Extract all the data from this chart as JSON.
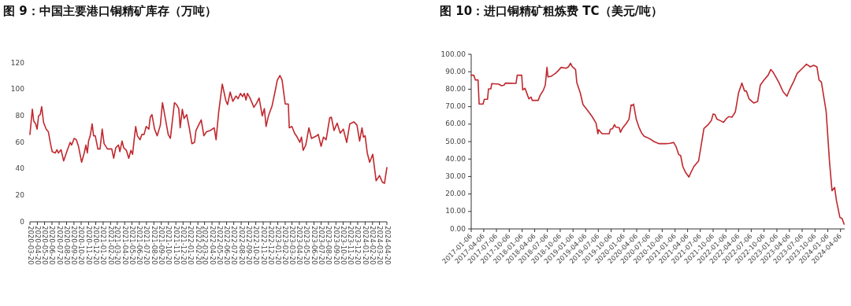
{
  "chart_data": [
    {
      "type": "line",
      "title": "图 9：中国主要港口铜精矿库存（万吨）",
      "color": "#c0282e",
      "xlim": [
        "2020-03-20",
        "2024-04-20"
      ],
      "ylim": [
        0,
        120
      ],
      "yticks": [
        0,
        20,
        40,
        60,
        80,
        100,
        120
      ],
      "xticks": [
        "2020-03-20",
        "2020-04-20",
        "2020-05-20",
        "2020-06-20",
        "2020-07-20",
        "2020-08-20",
        "2020-09-20",
        "2020-10-20",
        "2020-11-20",
        "2020-12-20",
        "2021-01-20",
        "2021-02-20",
        "2021-03-20",
        "2021-04-20",
        "2021-05-20",
        "2021-06-20",
        "2021-07-20",
        "2021-08-20",
        "2021-09-20",
        "2021-10-20",
        "2021-11-20",
        "2021-12-20",
        "2022-01-20",
        "2022-02-20",
        "2022-03-20",
        "2022-04-20",
        "2022-05-20",
        "2022-06-20",
        "2022-07-20",
        "2022-08-20",
        "2022-09-20",
        "2022-10-20",
        "2022-11-20",
        "2022-12-20",
        "2023-01-20",
        "2023-02-20",
        "2023-03-20",
        "2023-04-20",
        "2023-05-20",
        "2023-06-20",
        "2023-07-20",
        "2023-08-20",
        "2023-09-20",
        "2023-10-20",
        "2023-11-20",
        "2023-12-20",
        "2024-01-20",
        "2024-02-20",
        "2024-03-20",
        "2024-04-20"
      ],
      "x": [
        "2020-03-20",
        "2020-03-30",
        "2020-04-05",
        "2020-04-13",
        "2020-04-19",
        "2020-04-25",
        "2020-05-02",
        "2020-05-08",
        "2020-05-16",
        "2020-05-27",
        "2020-06-05",
        "2020-06-15",
        "2020-06-21",
        "2020-07-04",
        "2020-07-11",
        "2020-07-17",
        "2020-07-28",
        "2020-08-08",
        "2020-08-23",
        "2020-09-04",
        "2020-09-10",
        "2020-09-21",
        "2020-09-30",
        "2020-10-09",
        "2020-10-22",
        "2020-11-02",
        "2020-11-09",
        "2020-11-15",
        "2020-11-20",
        "2020-11-27",
        "2020-12-05",
        "2020-12-11",
        "2020-12-18",
        "2020-12-29",
        "2021-01-07",
        "2021-01-16",
        "2021-01-24",
        "2021-02-07",
        "2021-02-25",
        "2021-03-05",
        "2021-03-14",
        "2021-03-25",
        "2021-03-31",
        "2021-04-09",
        "2021-04-16",
        "2021-04-27",
        "2021-05-07",
        "2021-05-16",
        "2021-05-23",
        "2021-05-29",
        "2021-06-05",
        "2021-06-12",
        "2021-06-23",
        "2021-07-01",
        "2021-07-10",
        "2021-07-19",
        "2021-07-30",
        "2021-08-05",
        "2021-08-12",
        "2021-08-23",
        "2021-09-03",
        "2021-09-16",
        "2021-09-25",
        "2021-10-08",
        "2021-10-19",
        "2021-10-28",
        "2021-11-04",
        "2021-11-14",
        "2021-11-23",
        "2021-12-02",
        "2021-12-08",
        "2021-12-17",
        "2021-12-24",
        "2022-01-04",
        "2022-01-15",
        "2022-01-26",
        "2022-02-06",
        "2022-02-12",
        "2022-02-23",
        "2022-03-06",
        "2022-03-17",
        "2022-03-28",
        "2022-04-13",
        "2022-04-29",
        "2022-05-07",
        "2022-05-18",
        "2022-06-02",
        "2022-06-17",
        "2022-06-24",
        "2022-07-05",
        "2022-07-16",
        "2022-07-29",
        "2022-08-07",
        "2022-08-17",
        "2022-08-26",
        "2022-09-02",
        "2022-09-09",
        "2022-09-15",
        "2022-09-26",
        "2022-10-12",
        "2022-10-23",
        "2022-11-03",
        "2022-11-16",
        "2022-11-25",
        "2022-12-02",
        "2022-12-12",
        "2022-12-27",
        "2023-01-07",
        "2023-01-18",
        "2023-01-29",
        "2023-02-07",
        "2023-02-20",
        "2023-03-05",
        "2023-03-09",
        "2023-03-20",
        "2023-03-31",
        "2023-04-11",
        "2023-04-22",
        "2023-04-29",
        "2023-05-06",
        "2023-05-17",
        "2023-05-30",
        "2023-06-10",
        "2023-06-21",
        "2023-07-02",
        "2023-07-08",
        "2023-07-20",
        "2023-07-30",
        "2023-08-10",
        "2023-08-25",
        "2023-09-01",
        "2023-09-12",
        "2023-09-25",
        "2023-10-08",
        "2023-10-21",
        "2023-11-04",
        "2023-11-17",
        "2023-12-04",
        "2023-12-17",
        "2023-12-28",
        "2024-01-07",
        "2024-01-13",
        "2024-01-20",
        "2024-01-29",
        "2024-02-08",
        "2024-02-21",
        "2024-03-06",
        "2024-03-20",
        "2024-04-01",
        "2024-04-10",
        "2024-04-20"
      ],
      "values": [
        66,
        85,
        76,
        74,
        70,
        80,
        81,
        87,
        75,
        70,
        68,
        58,
        53,
        52,
        54.5,
        52,
        54.5,
        46,
        54,
        60,
        58,
        63,
        62,
        57,
        45,
        52,
        58,
        52,
        61,
        65,
        74,
        65,
        65,
        55,
        55,
        70,
        59,
        55,
        55,
        48,
        56,
        58,
        53,
        61,
        56,
        54,
        48,
        54,
        51,
        61,
        72,
        65,
        62,
        66,
        66,
        72,
        70,
        79,
        81,
        70,
        65,
        73,
        90,
        77,
        66,
        63,
        74,
        90,
        88.5,
        85.5,
        71,
        85,
        78,
        81,
        71,
        59,
        60,
        69,
        73,
        77,
        65,
        68,
        69,
        71,
        62,
        83,
        104,
        91.5,
        88.5,
        98,
        91,
        95,
        93,
        97,
        94.5,
        97,
        92,
        97,
        93.5,
        86.5,
        89.5,
        93.5,
        80,
        85.5,
        72,
        80,
        87.5,
        97,
        107,
        110.5,
        107,
        89,
        89,
        71,
        72,
        67,
        64,
        60,
        64,
        54,
        58,
        71,
        63,
        64,
        65,
        66,
        57,
        64,
        62,
        78.5,
        79,
        69,
        74.5,
        67,
        70,
        60,
        74,
        75.5,
        73,
        61,
        71,
        64,
        65,
        52,
        45,
        51,
        31,
        35,
        30,
        29,
        41
      ]
    },
    {
      "type": "line",
      "title": "图 10：进口铜精矿粗炼费 TC（美元/吨）",
      "color": "#c0282e",
      "xlim": [
        "2017-01-06",
        "2024-05-06"
      ],
      "ylim": [
        0,
        100
      ],
      "yticks": [
        {
          "value": 0,
          "label": "0.00"
        },
        {
          "value": 10,
          "label": "10.00"
        },
        {
          "value": 20,
          "label": "20.00"
        },
        {
          "value": 30,
          "label": "30.00"
        },
        {
          "value": 40,
          "label": "40.00"
        },
        {
          "value": 50,
          "label": "50.00"
        },
        {
          "value": 60,
          "label": "60.00"
        },
        {
          "value": 70,
          "label": "70.00"
        },
        {
          "value": 80,
          "label": "80.00"
        },
        {
          "value": 90,
          "label": "90.00"
        },
        {
          "value": 100,
          "label": "100.00"
        }
      ],
      "xticks": [
        "2017-01-06",
        "2017-04-06",
        "2017-07-06",
        "2017-10-06",
        "2018-01-06",
        "2018-04-06",
        "2018-07-06",
        "2018-10-06",
        "2019-01-06",
        "2019-04-06",
        "2019-07-06",
        "2019-10-06",
        "2020-01-06",
        "2020-04-06",
        "2020-07-06",
        "2020-10-06",
        "2021-01-06",
        "2021-04-06",
        "2021-07-06",
        "2021-10-06",
        "2022-01-06",
        "2022-04-06",
        "2022-07-06",
        "2022-10-06",
        "2023-01-06",
        "2023-04-06",
        "2023-07-06",
        "2023-10-06",
        "2024-01-06",
        "2024-04-06"
      ],
      "x": [
        "2017-01-06",
        "2017-01-25",
        "2017-02-05",
        "2017-02-24",
        "2017-03-04",
        "2017-04-01",
        "2017-04-10",
        "2017-05-03",
        "2017-05-10",
        "2017-05-27",
        "2017-06-02",
        "2017-07-23",
        "2017-08-11",
        "2017-08-29",
        "2017-09-08",
        "2017-11-23",
        "2017-12-02",
        "2018-01-03",
        "2018-01-10",
        "2018-01-27",
        "2018-02-15",
        "2018-02-24",
        "2018-03-12",
        "2018-03-19",
        "2018-05-01",
        "2018-05-14",
        "2018-06-08",
        "2018-06-21",
        "2018-07-03",
        "2018-07-10",
        "2018-08-03",
        "2018-08-13",
        "2018-09-01",
        "2018-09-20",
        "2018-10-13",
        "2018-11-16",
        "2018-12-04",
        "2018-12-19",
        "2019-01-01",
        "2019-01-24",
        "2019-02-02",
        "2019-02-27",
        "2019-03-18",
        "2019-04-25",
        "2019-05-23",
        "2019-06-20",
        "2019-07-03",
        "2019-07-09",
        "2019-08-02",
        "2019-09-22",
        "2019-10-01",
        "2019-10-16",
        "2019-10-30",
        "2019-11-08",
        "2019-12-03",
        "2019-12-12",
        "2019-12-25",
        "2020-01-23",
        "2020-02-11",
        "2020-02-26",
        "2020-03-04",
        "2020-03-15",
        "2020-04-03",
        "2020-04-22",
        "2020-05-11",
        "2020-05-30",
        "2020-06-22",
        "2020-07-11",
        "2020-08-08",
        "2020-09-14",
        "2020-10-31",
        "2020-11-29",
        "2020-12-27",
        "2021-01-14",
        "2021-02-02",
        "2021-02-15",
        "2021-03-03",
        "2021-03-22",
        "2021-04-15",
        "2021-04-28",
        "2021-05-21",
        "2021-06-24",
        "2021-07-09",
        "2021-08-01",
        "2021-08-29",
        "2021-09-23",
        "2021-10-06",
        "2021-10-19",
        "2021-11-03",
        "2021-11-26",
        "2021-12-20",
        "2022-01-07",
        "2022-01-26",
        "2022-02-19",
        "2022-03-14",
        "2022-04-06",
        "2022-04-30",
        "2022-05-19",
        "2022-06-01",
        "2022-06-20",
        "2022-07-24",
        "2022-08-21",
        "2022-09-09",
        "2022-10-03",
        "2022-11-04",
        "2022-11-23",
        "2022-12-12",
        "2023-01-19",
        "2023-02-20",
        "2023-03-19",
        "2023-04-05",
        "2023-05-07",
        "2023-05-31",
        "2023-07-08",
        "2023-08-06",
        "2023-09-03",
        "2023-09-27",
        "2023-10-20",
        "2023-11-04",
        "2023-11-21",
        "2023-12-25",
        "2024-01-18",
        "2024-02-05",
        "2024-02-24",
        "2024-03-08",
        "2024-04-02",
        "2024-04-17",
        "2024-05-02"
      ],
      "values": [
        88,
        88,
        85.3,
        85.3,
        71.5,
        71.5,
        74.2,
        74.2,
        80.2,
        80.2,
        83.2,
        82.9,
        82,
        82.3,
        83.5,
        83.3,
        88,
        88,
        79.6,
        80.5,
        76.3,
        74.5,
        75.5,
        73.6,
        73.6,
        76.3,
        79.6,
        82.3,
        92.5,
        87.1,
        87.4,
        88,
        89,
        90.5,
        92.5,
        92,
        92.8,
        94.9,
        92.8,
        91.3,
        83.8,
        77.8,
        71.3,
        67.3,
        64.3,
        60.5,
        54.5,
        56.8,
        54.5,
        54.5,
        57.1,
        57.4,
        59.8,
        58.3,
        58,
        55.3,
        57.5,
        60.5,
        62.8,
        71,
        70.6,
        71.5,
        62.8,
        58.3,
        55,
        53,
        52.3,
        51.5,
        50,
        48.8,
        48.8,
        49,
        49.5,
        47,
        42.5,
        42,
        35.7,
        32.4,
        29.7,
        32,
        35.7,
        39,
        46.2,
        57.5,
        59.5,
        62,
        65.8,
        65.5,
        62.8,
        62,
        61,
        63,
        64.3,
        64,
        67,
        77.8,
        83.5,
        79,
        79,
        74.5,
        72.1,
        73,
        82.3,
        85,
        88,
        91.3,
        89.5,
        84.1,
        78.5,
        76,
        79.3,
        84.5,
        89,
        92,
        94.3,
        92.8,
        93.7,
        92.8,
        85.3,
        84.1,
        67.3,
        38.7,
        21.9,
        23.7,
        16.2,
        6.5,
        6,
        2.7
      ]
    }
  ]
}
